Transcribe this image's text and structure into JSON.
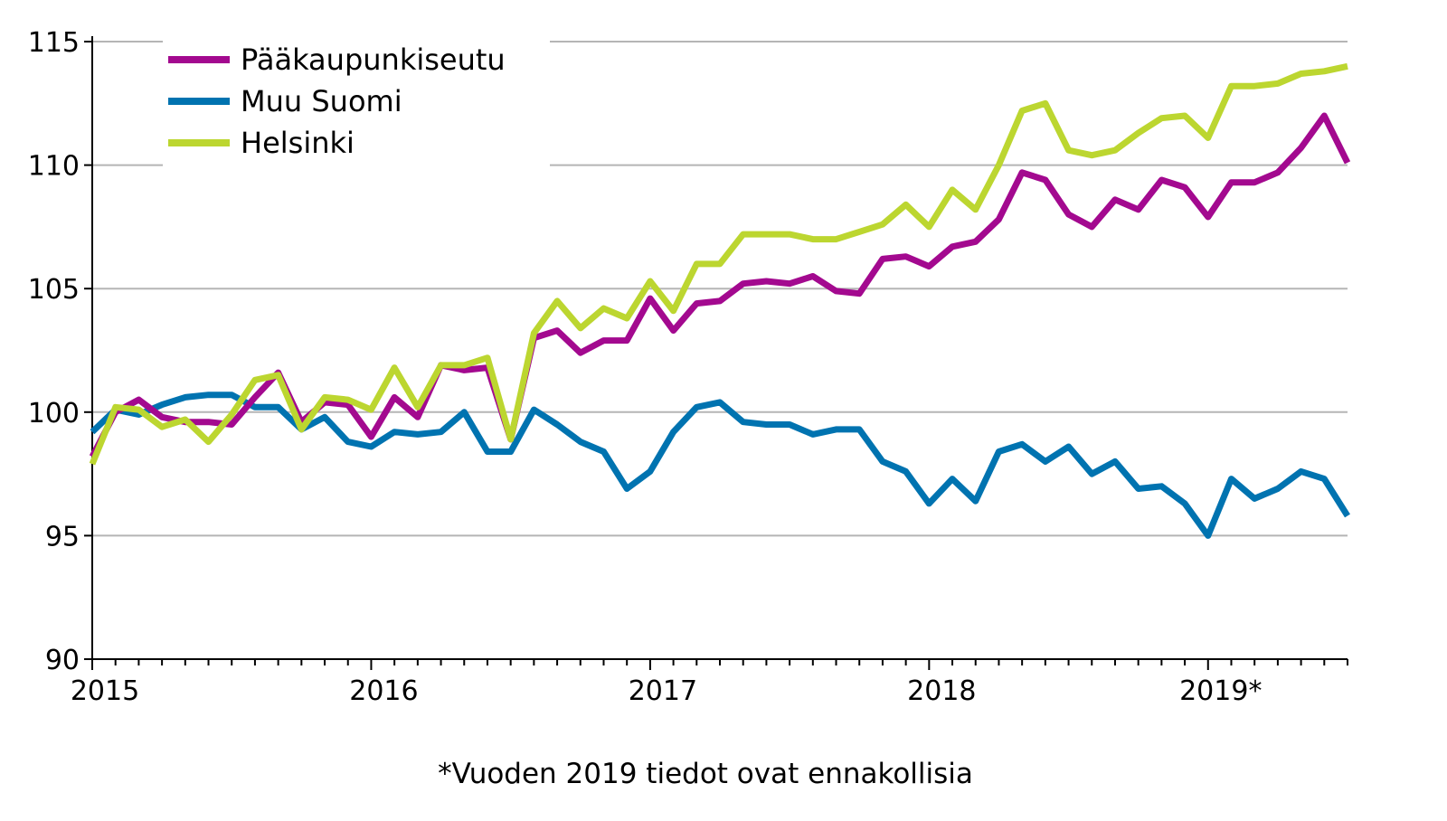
{
  "chart_data": {
    "type": "line",
    "title": "",
    "xlabel": "",
    "ylabel": "",
    "footnote": "*Vuoden 2019 tiedot ovat ennakollisia",
    "ylim": [
      90,
      115
    ],
    "y_ticks": [
      90,
      95,
      100,
      105,
      110,
      115
    ],
    "x_tick_labels": [
      "2015",
      "2016",
      "2017",
      "2018",
      "2019*"
    ],
    "grid": true,
    "legend_position": "top-left",
    "x_start": "2015-01",
    "x_end": "2019-07",
    "x": [
      "2015-01",
      "2015-02",
      "2015-03",
      "2015-04",
      "2015-05",
      "2015-06",
      "2015-07",
      "2015-08",
      "2015-09",
      "2015-10",
      "2015-11",
      "2015-12",
      "2016-01",
      "2016-02",
      "2016-03",
      "2016-04",
      "2016-05",
      "2016-06",
      "2016-07",
      "2016-08",
      "2016-09",
      "2016-10",
      "2016-11",
      "2016-12",
      "2017-01",
      "2017-02",
      "2017-03",
      "2017-04",
      "2017-05",
      "2017-06",
      "2017-07",
      "2017-08",
      "2017-09",
      "2017-10",
      "2017-11",
      "2017-12",
      "2018-01",
      "2018-02",
      "2018-03",
      "2018-04",
      "2018-05",
      "2018-06",
      "2018-07",
      "2018-08",
      "2018-09",
      "2018-10",
      "2018-11",
      "2018-12",
      "2019-01",
      "2019-02",
      "2019-03",
      "2019-04",
      "2019-05",
      "2019-06",
      "2019-07"
    ],
    "series": [
      {
        "name": "Pääkaupunkiseutu",
        "color": "#a3098f",
        "values": [
          98.2,
          100.0,
          100.5,
          99.8,
          99.6,
          99.6,
          99.5,
          100.6,
          101.6,
          99.6,
          100.4,
          100.3,
          99.0,
          100.6,
          99.8,
          101.9,
          101.7,
          101.8,
          98.9,
          103.0,
          103.3,
          102.4,
          102.9,
          102.9,
          104.6,
          103.3,
          104.4,
          104.5,
          105.2,
          105.3,
          105.2,
          105.5,
          104.9,
          104.8,
          106.2,
          106.3,
          105.9,
          106.7,
          106.9,
          107.8,
          109.7,
          109.4,
          108.0,
          107.5,
          108.6,
          108.2,
          109.4,
          109.1,
          107.9,
          109.3,
          109.3,
          109.7,
          110.7,
          112.0,
          110.1
        ]
      },
      {
        "name": "Muu Suomi",
        "color": "#0073b0",
        "values": [
          99.2,
          100.1,
          99.9,
          100.3,
          100.6,
          100.7,
          100.7,
          100.2,
          100.2,
          99.3,
          99.8,
          98.8,
          98.6,
          99.2,
          99.1,
          99.2,
          100.0,
          98.4,
          98.4,
          100.1,
          99.5,
          98.8,
          98.4,
          96.9,
          97.6,
          99.2,
          100.2,
          100.4,
          99.6,
          99.5,
          99.5,
          99.1,
          99.3,
          99.3,
          98.0,
          97.6,
          96.3,
          97.3,
          96.4,
          98.4,
          98.7,
          98.0,
          98.6,
          97.5,
          98.0,
          96.9,
          97.0,
          96.3,
          95.0,
          97.3,
          96.5,
          96.9,
          97.6,
          97.3,
          95.8
        ]
      },
      {
        "name": "Helsinki",
        "color": "#bcd630",
        "values": [
          97.9,
          100.2,
          100.1,
          99.4,
          99.7,
          98.8,
          99.9,
          101.3,
          101.5,
          99.3,
          100.6,
          100.5,
          100.1,
          101.8,
          100.2,
          101.9,
          101.9,
          102.2,
          98.9,
          103.2,
          104.5,
          103.4,
          104.2,
          103.8,
          105.3,
          104.1,
          106.0,
          106.0,
          107.2,
          107.2,
          107.2,
          107.0,
          107.0,
          107.3,
          107.6,
          108.4,
          107.5,
          109.0,
          108.2,
          110.0,
          112.2,
          112.5,
          110.6,
          110.4,
          110.6,
          111.3,
          111.9,
          112.0,
          111.1,
          113.2,
          113.2,
          113.3,
          113.7,
          113.8,
          114.0
        ]
      }
    ]
  }
}
